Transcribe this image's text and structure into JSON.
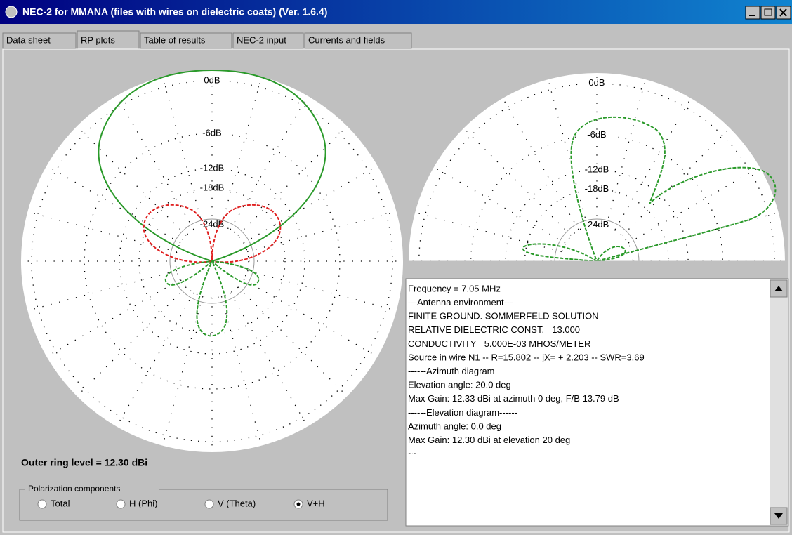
{
  "window": {
    "title": "NEC-2 for MMANA (files with wires on dielectric coats) (Ver. 1.6.4)"
  },
  "tabs": [
    "Data sheet",
    "RP plots",
    "Table of results",
    "NEC-2 input",
    "Currents and fields"
  ],
  "plots": {
    "left": {
      "ring_labels": [
        "0dB",
        "-6dB",
        "-12dB",
        "-18dB",
        "-24dB"
      ]
    },
    "right": {
      "ring_labels": [
        "0dB",
        "-6dB",
        "-12dB",
        "-18dB",
        "-24dB"
      ]
    }
  },
  "outer_ring": "Outer ring level = 12.30 dBi",
  "polarization": {
    "title": "Polarization components",
    "options": [
      "Total",
      "H (Phi)",
      "V (Theta)",
      "V+H"
    ]
  },
  "results": {
    "lines": [
      "Frequency = 7.05 MHz",
      "---Antenna environment---",
      "FINITE GROUND. SOMMERFELD SOLUTION",
      "RELATIVE DIELECTRIC CONST.= 13.000",
      "CONDUCTIVITY= 5.000E-03 MHOS/METER",
      "Source in wire N1 -- R=15.802 -- jX= + 2.203 -- SWR=3.69",
      "------Azimuth diagram",
      "Elevation angle: 20.0 deg",
      "Max Gain: 12.33 dBi at azimuth 0 deg, F/B 13.79 dB",
      "------Elevation diagram------",
      "Azimuth angle: 0.0 deg",
      "Max Gain: 12.30 dBi at elevation 20 deg",
      "~~"
    ]
  }
}
